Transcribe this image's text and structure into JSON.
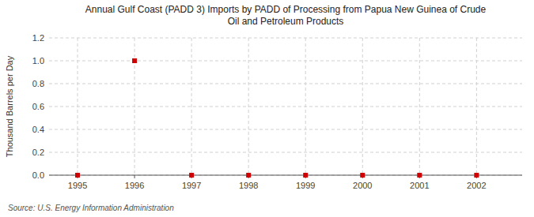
{
  "chart_data": {
    "type": "scatter",
    "title": "Annual Gulf Coast (PADD 3) Imports by PADD of Processing from Papua New Guinea of Crude\nOil and Petroleum Products",
    "y_label": "Thousand Barrels per Day",
    "annotations": [
      "Source: U.S. Energy Information Administration"
    ],
    "x": [
      1995,
      1996,
      1997,
      1998,
      1999,
      2000,
      2001,
      2002
    ],
    "values": [
      0,
      1.0,
      0,
      0,
      0,
      0,
      0,
      0
    ],
    "color": "#cc0000",
    "marker": "square",
    "xlim": [
      1994.5,
      2002.8
    ],
    "ylim": [
      0,
      1.2
    ],
    "xticks": [
      1995,
      1996,
      1997,
      1998,
      1999,
      2000,
      2001,
      2002
    ],
    "yticks": [
      {
        "value": 0.0,
        "label": "0.0"
      },
      0.2,
      0.4,
      0.6,
      0.8,
      {
        "value": 1.0,
        "label": "1.0"
      },
      1.2
    ],
    "grid": true
  }
}
